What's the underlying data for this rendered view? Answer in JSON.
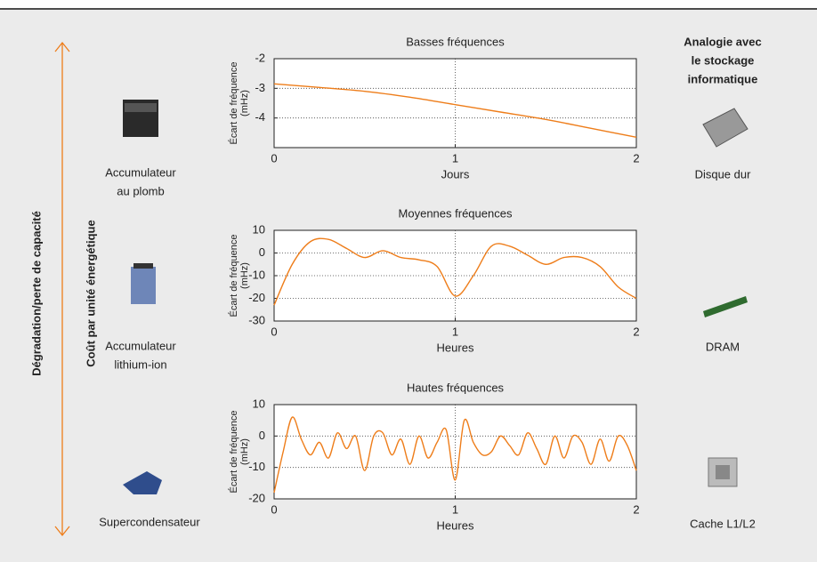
{
  "side_axes": {
    "outer_label": "Dégradation/perte de capacité",
    "inner_label": "Coût par unité énergétique"
  },
  "storage_types": [
    [
      "Accumulateur",
      "au plomb"
    ],
    [
      "Accumulateur",
      "lithium-ion"
    ],
    [
      "Supercondensateur"
    ]
  ],
  "analogy": {
    "title": [
      "Analogie avec",
      "le stockage",
      "informatique"
    ],
    "items": [
      "Disque dur",
      "DRAM",
      "Cache L1/L2"
    ]
  },
  "chart_data": [
    {
      "type": "line",
      "title": "Basses fréquences",
      "xlabel": "Jours",
      "ylabel": [
        "Écart de fréquence",
        "(mHz)"
      ],
      "color": "#ee7d1a",
      "x": [
        0,
        0.25,
        0.5,
        0.75,
        1,
        1.25,
        1.5,
        1.75,
        2
      ],
      "values": [
        -2.85,
        -2.97,
        -3.1,
        -3.3,
        -3.55,
        -3.8,
        -4.05,
        -4.35,
        -4.65
      ],
      "xlim": [
        0,
        2
      ],
      "xticks": [
        0,
        1,
        2
      ],
      "ylim": [
        -5,
        -2
      ],
      "yticks": [
        -2,
        -3,
        -4
      ],
      "grid": true
    },
    {
      "type": "line",
      "title": "Moyennes fréquences",
      "xlabel": "Heures",
      "ylabel": [
        "Écart de fréquence",
        "(mHz)"
      ],
      "color": "#ee7d1a",
      "x": [
        0,
        0.1,
        0.2,
        0.3,
        0.4,
        0.5,
        0.6,
        0.7,
        0.8,
        0.9,
        1,
        1.1,
        1.2,
        1.3,
        1.4,
        1.5,
        1.6,
        1.7,
        1.8,
        1.9,
        2
      ],
      "values": [
        -23,
        -5,
        5,
        6,
        2,
        -2,
        1,
        -2,
        -3,
        -6,
        -19,
        -10,
        3,
        3,
        -1,
        -5,
        -2,
        -2,
        -6,
        -15,
        -20
      ],
      "xlim": [
        0,
        2
      ],
      "xticks": [
        0,
        1,
        2
      ],
      "ylim": [
        -30,
        10
      ],
      "yticks": [
        10,
        0,
        -10,
        -20,
        -30
      ],
      "grid": true
    },
    {
      "type": "line",
      "title": "Hautes fréquences",
      "xlabel": "Heures",
      "ylabel": [
        "Écart de fréquence",
        "(mHz)"
      ],
      "color": "#ee7d1a",
      "x": [
        0,
        0.05,
        0.1,
        0.15,
        0.2,
        0.25,
        0.3,
        0.35,
        0.4,
        0.45,
        0.5,
        0.55,
        0.6,
        0.65,
        0.7,
        0.75,
        0.8,
        0.85,
        0.9,
        0.95,
        1,
        1.05,
        1.1,
        1.15,
        1.2,
        1.25,
        1.3,
        1.35,
        1.4,
        1.45,
        1.5,
        1.55,
        1.6,
        1.65,
        1.7,
        1.75,
        1.8,
        1.85,
        1.9,
        1.95,
        2
      ],
      "values": [
        -18,
        -5,
        6,
        -1,
        -6,
        -2,
        -7,
        1,
        -4,
        0,
        -11,
        0,
        1,
        -6,
        -1,
        -9,
        0,
        -7,
        -2,
        2,
        -14,
        5,
        -2,
        -6,
        -5,
        0,
        -3,
        -6,
        1,
        -4,
        -9,
        0,
        -7,
        0,
        -2,
        -9,
        -1,
        -8,
        0,
        -3,
        -11
      ],
      "xlim": [
        0,
        2
      ],
      "xticks": [
        0,
        1,
        2
      ],
      "ylim": [
        -20,
        10
      ],
      "yticks": [
        10,
        0,
        -10,
        -20
      ],
      "grid": true
    }
  ]
}
